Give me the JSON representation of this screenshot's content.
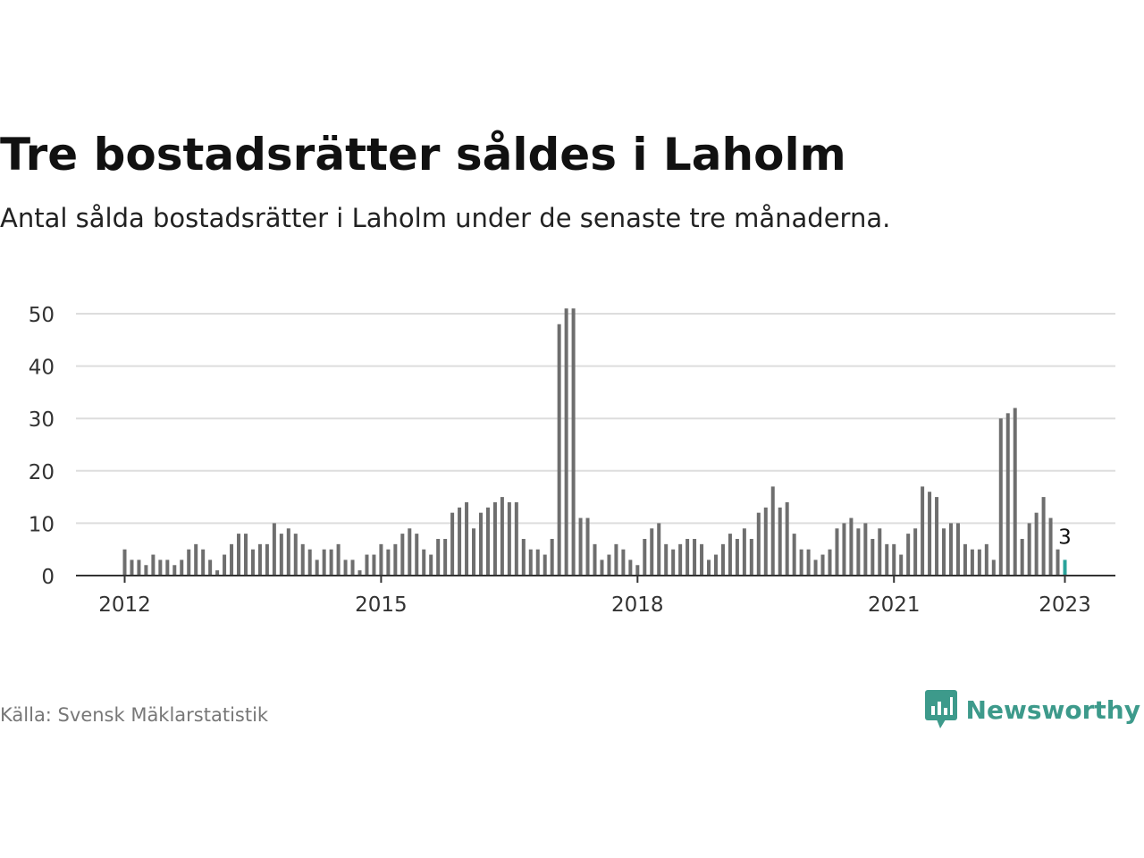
{
  "header": {
    "title": "Tre bostadsrätter såldes i Laholm",
    "subtitle": "Antal sålda bostadsrätter i Laholm under de senaste tre månaderna."
  },
  "footer": {
    "source": "Källa: Svensk Mäklarstatistik",
    "brand": "Newsworthy",
    "brand_icon": "bar-chart-speech-bubble-icon"
  },
  "colors": {
    "bar": "#6e6e6e",
    "highlight": "#2aa39b",
    "grid": "#dddddd",
    "axis": "#333333",
    "brand": "#3d9a8b"
  },
  "chart_data": {
    "type": "bar",
    "x_start": "2012-01",
    "x_end": "2023-01",
    "x": [
      "2012-01",
      "2012-02",
      "2012-03",
      "2012-04",
      "2012-05",
      "2012-06",
      "2012-07",
      "2012-08",
      "2012-09",
      "2012-10",
      "2012-11",
      "2012-12",
      "2013-01",
      "2013-02",
      "2013-03",
      "2013-04",
      "2013-05",
      "2013-06",
      "2013-07",
      "2013-08",
      "2013-09",
      "2013-10",
      "2013-11",
      "2013-12",
      "2014-01",
      "2014-02",
      "2014-03",
      "2014-04",
      "2014-05",
      "2014-06",
      "2014-07",
      "2014-08",
      "2014-09",
      "2014-10",
      "2014-11",
      "2014-12",
      "2015-01",
      "2015-02",
      "2015-03",
      "2015-04",
      "2015-05",
      "2015-06",
      "2015-07",
      "2015-08",
      "2015-09",
      "2015-10",
      "2015-11",
      "2015-12",
      "2016-01",
      "2016-02",
      "2016-03",
      "2016-04",
      "2016-05",
      "2016-06",
      "2016-07",
      "2016-08",
      "2016-09",
      "2016-10",
      "2016-11",
      "2016-12",
      "2017-01",
      "2017-02",
      "2017-03",
      "2017-04",
      "2017-05",
      "2017-06",
      "2017-07",
      "2017-08",
      "2017-09",
      "2017-10",
      "2017-11",
      "2017-12",
      "2018-01",
      "2018-02",
      "2018-03",
      "2018-04",
      "2018-05",
      "2018-06",
      "2018-07",
      "2018-08",
      "2018-09",
      "2018-10",
      "2018-11",
      "2018-12",
      "2019-01",
      "2019-02",
      "2019-03",
      "2019-04",
      "2019-05",
      "2019-06",
      "2019-07",
      "2019-08",
      "2019-09",
      "2019-10",
      "2019-11",
      "2019-12",
      "2020-01",
      "2020-02",
      "2020-03",
      "2020-04",
      "2020-05",
      "2020-06",
      "2020-07",
      "2020-08",
      "2020-09",
      "2020-10",
      "2020-11",
      "2020-12",
      "2021-01",
      "2021-02",
      "2021-03",
      "2021-04",
      "2021-05",
      "2021-06",
      "2021-07",
      "2021-08",
      "2021-09",
      "2021-10",
      "2021-11",
      "2021-12",
      "2022-01",
      "2022-02",
      "2022-03",
      "2022-04",
      "2022-05",
      "2022-06",
      "2022-07",
      "2022-08",
      "2022-09",
      "2022-10",
      "2022-11",
      "2022-12",
      "2023-01"
    ],
    "values": [
      5,
      3,
      3,
      2,
      4,
      3,
      3,
      2,
      3,
      5,
      6,
      5,
      3,
      1,
      4,
      6,
      8,
      8,
      5,
      6,
      6,
      10,
      8,
      9,
      8,
      6,
      5,
      3,
      5,
      5,
      6,
      3,
      3,
      1,
      4,
      4,
      6,
      5,
      6,
      8,
      9,
      8,
      5,
      4,
      7,
      7,
      12,
      13,
      14,
      9,
      12,
      13,
      14,
      15,
      14,
      14,
      7,
      5,
      5,
      4,
      7,
      48,
      51,
      51,
      11,
      11,
      6,
      3,
      4,
      6,
      5,
      3,
      2,
      7,
      9,
      10,
      6,
      5,
      6,
      7,
      7,
      6,
      3,
      4,
      6,
      8,
      7,
      9,
      7,
      12,
      13,
      17,
      13,
      14,
      8,
      5,
      5,
      3,
      4,
      5,
      9,
      10,
      11,
      9,
      10,
      7,
      9,
      6,
      6,
      4,
      8,
      9,
      17,
      16,
      15,
      9,
      10,
      10,
      6,
      5,
      5,
      6,
      3,
      30,
      31,
      32,
      7,
      10,
      12,
      15,
      11,
      5,
      3
    ],
    "highlight_index": 132,
    "highlight_label": "3",
    "ylim": [
      0,
      50
    ],
    "yticks": [
      0,
      10,
      20,
      30,
      40,
      50
    ],
    "ytick_labels": [
      "0",
      "10",
      "20",
      "30",
      "40",
      "50"
    ],
    "xticks": [
      "2012-01",
      "2015-01",
      "2018-01",
      "2021-01",
      "2023-01"
    ],
    "xtick_labels": [
      "2012",
      "2015",
      "2018",
      "2021",
      "2023"
    ],
    "grid": true,
    "legend": "none"
  }
}
